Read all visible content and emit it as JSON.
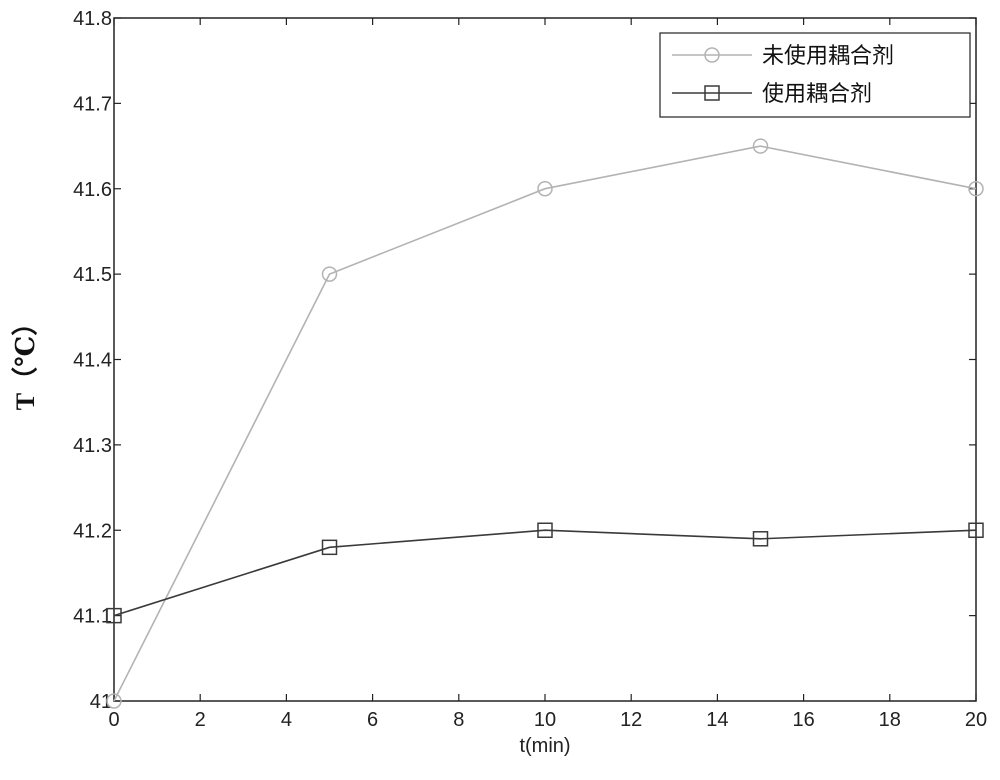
{
  "chart_data": {
    "type": "line",
    "xlabel": "t(min)",
    "ylabel": "T（℃）",
    "xlim": [
      0,
      20
    ],
    "ylim": [
      41.0,
      41.8
    ],
    "xticks": [
      0,
      2,
      4,
      6,
      8,
      10,
      12,
      14,
      16,
      18,
      20
    ],
    "yticks": [
      41.0,
      41.1,
      41.2,
      41.3,
      41.4,
      41.5,
      41.6,
      41.7,
      41.8
    ],
    "xtick_labels": [
      "0",
      "2",
      "4",
      "6",
      "8",
      "10",
      "12",
      "14",
      "16",
      "18",
      "20"
    ],
    "ytick_labels": [
      "41",
      "41.1",
      "41.2",
      "41.3",
      "41.4",
      "41.5",
      "41.6",
      "41.7",
      "41.8"
    ],
    "grid": false,
    "legend_position": "top-right",
    "x": [
      0,
      5,
      10,
      15,
      20
    ],
    "series": [
      {
        "name": "未使用耦合剂",
        "values": [
          41.0,
          41.5,
          41.6,
          41.65,
          41.6
        ],
        "marker": "circle",
        "color": "#b3b3b3"
      },
      {
        "name": "使用耦合剂",
        "values": [
          41.1,
          41.18,
          41.2,
          41.19,
          41.2
        ],
        "marker": "square",
        "color": "#3a3a3a"
      }
    ]
  }
}
